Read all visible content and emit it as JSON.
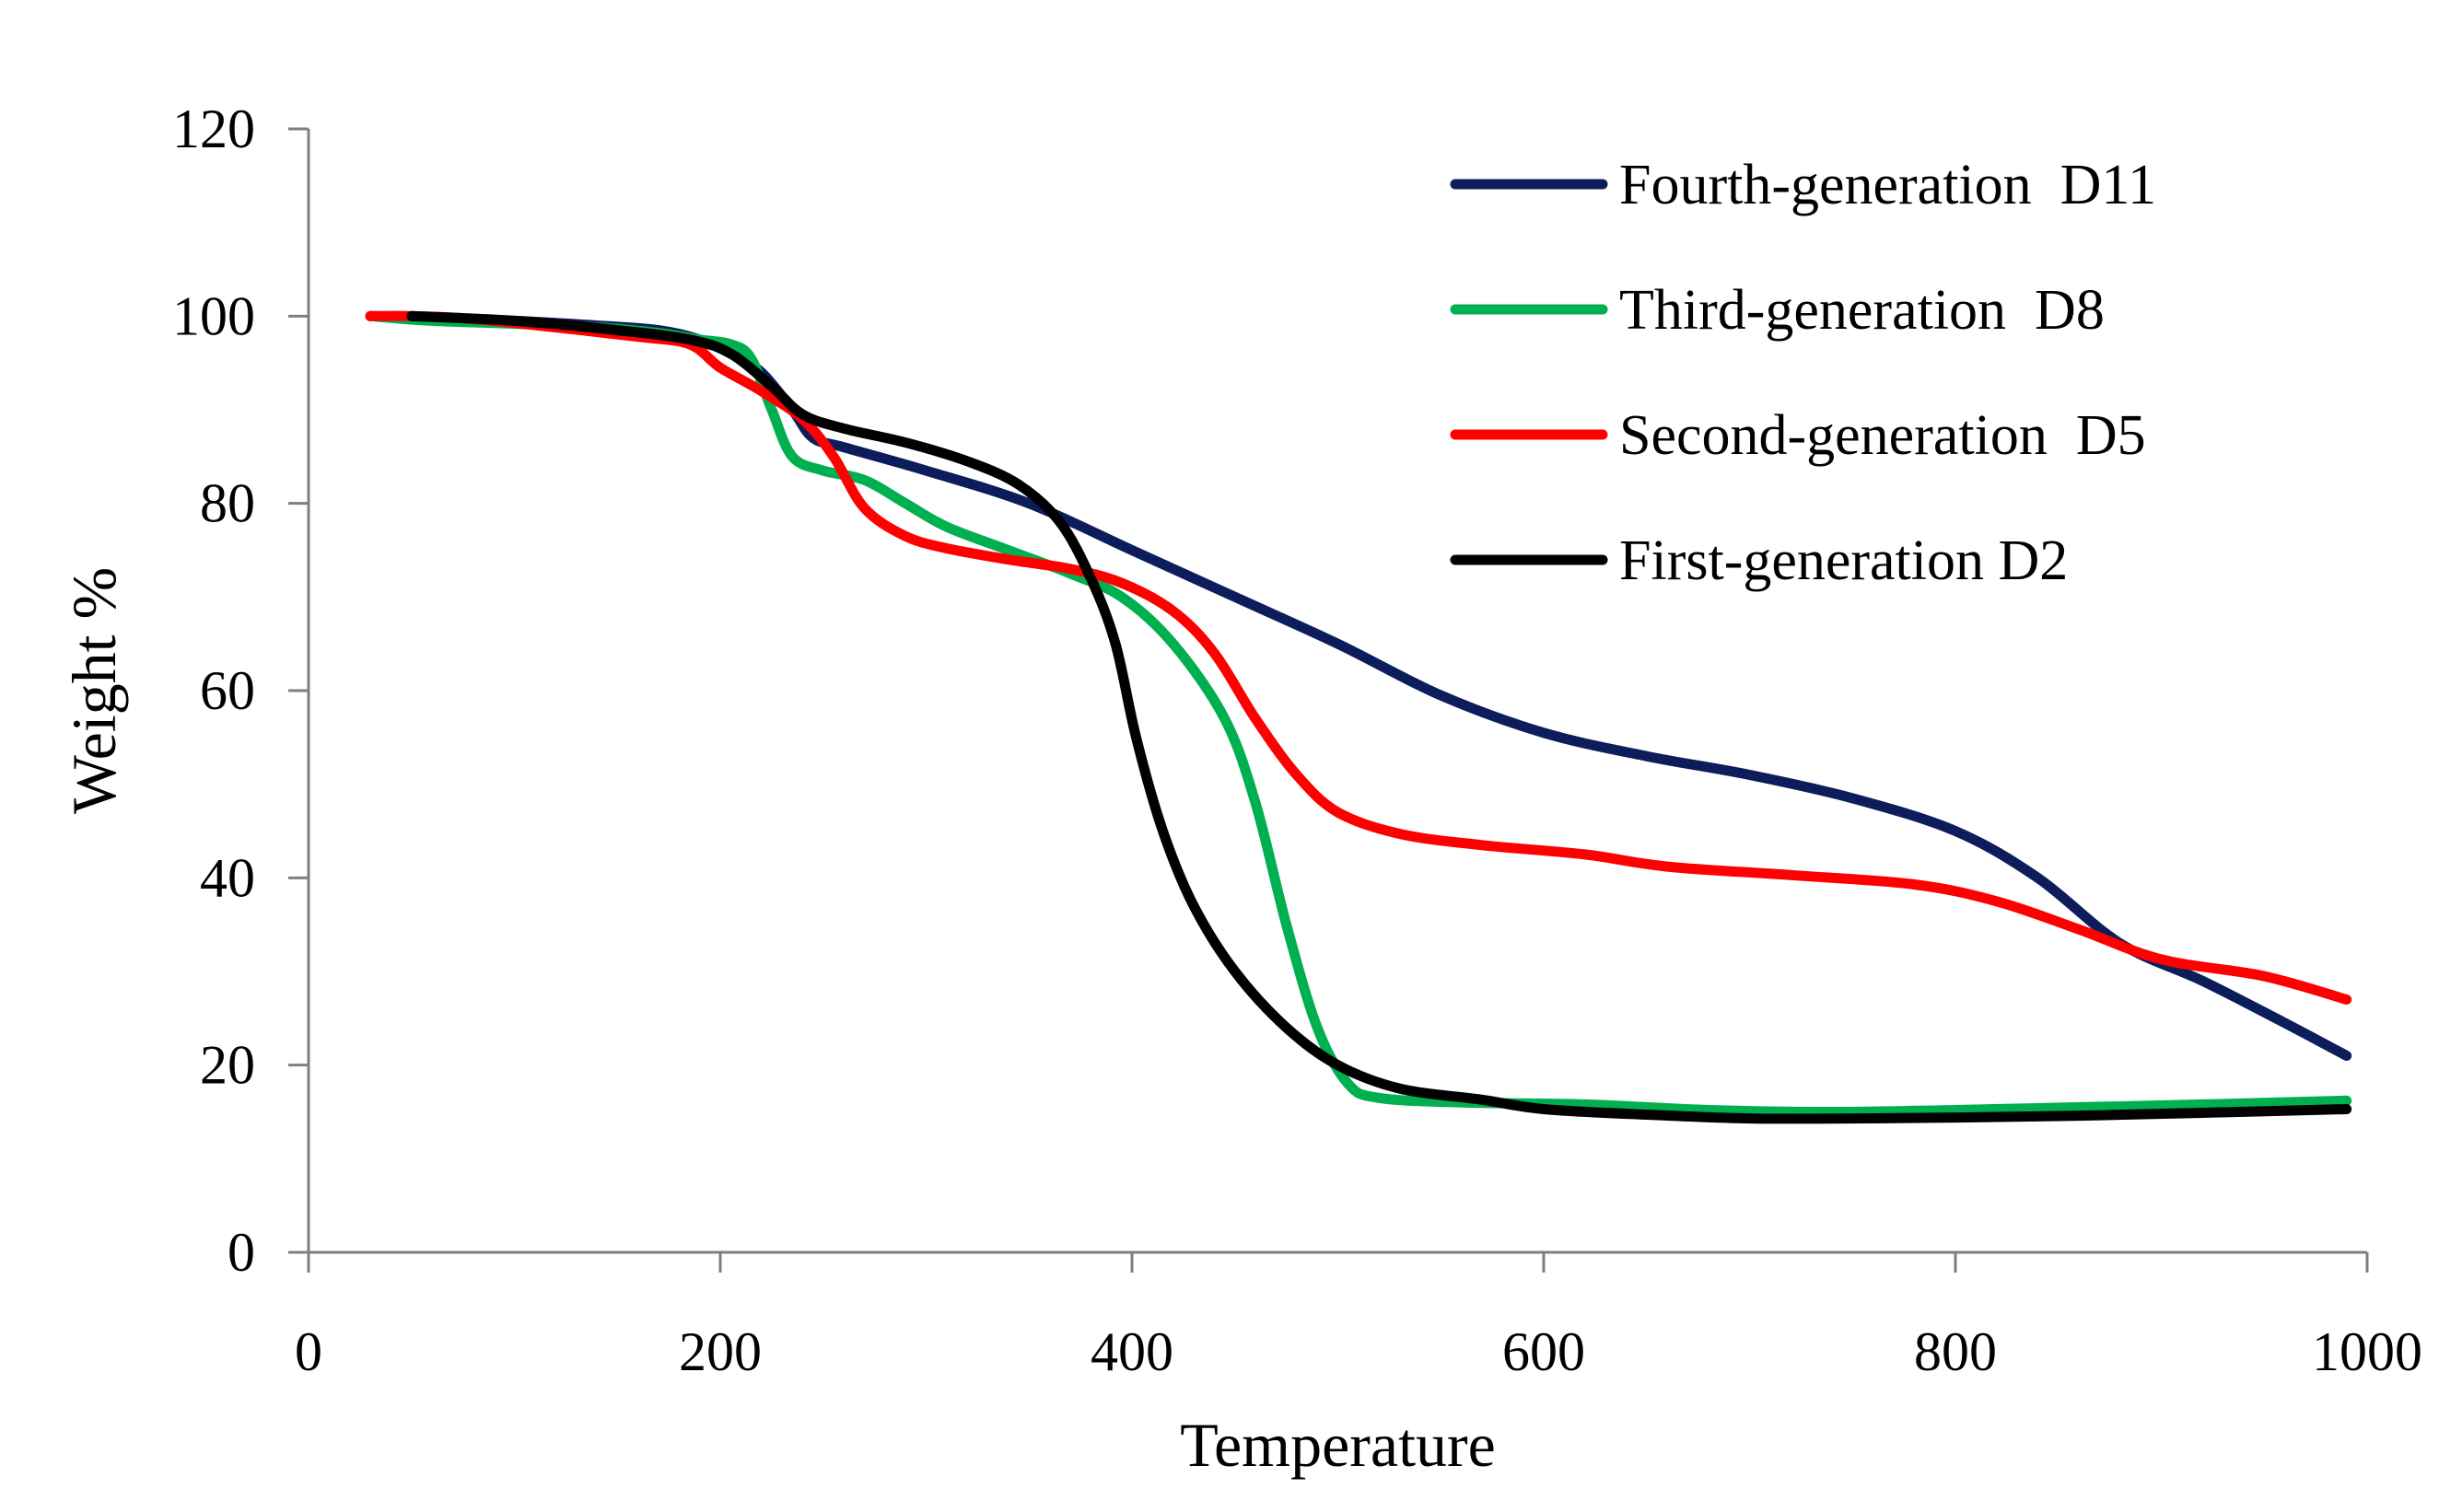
{
  "chart_data": {
    "type": "line",
    "title": "",
    "xlabel": "Temperature",
    "ylabel": "Weight %",
    "xlim": [
      0,
      1000
    ],
    "ylim": [
      0,
      120
    ],
    "xticks": [
      0,
      200,
      400,
      600,
      800,
      1000
    ],
    "yticks": [
      0,
      20,
      40,
      60,
      80,
      100,
      120
    ],
    "grid": false,
    "legend_position": "top-right",
    "series": [
      {
        "name": "Fourth-generation  D11",
        "color": "#0d1d5c",
        "points": [
          [
            30,
            100
          ],
          [
            60,
            99.8
          ],
          [
            100,
            99.5
          ],
          [
            140,
            99
          ],
          [
            170,
            98.5
          ],
          [
            190,
            97.5
          ],
          [
            205,
            96
          ],
          [
            220,
            94
          ],
          [
            235,
            90
          ],
          [
            245,
            87
          ],
          [
            260,
            86
          ],
          [
            300,
            83.5
          ],
          [
            350,
            80
          ],
          [
            400,
            75
          ],
          [
            450,
            70
          ],
          [
            500,
            65
          ],
          [
            550,
            59.5
          ],
          [
            600,
            55.5
          ],
          [
            650,
            53
          ],
          [
            700,
            51
          ],
          [
            750,
            48.5
          ],
          [
            800,
            45
          ],
          [
            840,
            40
          ],
          [
            880,
            33
          ],
          [
            920,
            29
          ],
          [
            960,
            24.5
          ],
          [
            990,
            21
          ]
        ]
      },
      {
        "name": "Third-generation  D8",
        "color": "#00b050",
        "points": [
          [
            30,
            100
          ],
          [
            60,
            99.5
          ],
          [
            100,
            99.2
          ],
          [
            140,
            98.8
          ],
          [
            170,
            98.2
          ],
          [
            190,
            97.5
          ],
          [
            205,
            97
          ],
          [
            215,
            95.5
          ],
          [
            225,
            90
          ],
          [
            235,
            85
          ],
          [
            250,
            83.5
          ],
          [
            270,
            82.5
          ],
          [
            290,
            80
          ],
          [
            310,
            77.5
          ],
          [
            340,
            75
          ],
          [
            370,
            72.5
          ],
          [
            395,
            70
          ],
          [
            420,
            65
          ],
          [
            445,
            57
          ],
          [
            460,
            48
          ],
          [
            475,
            35
          ],
          [
            490,
            24
          ],
          [
            505,
            18
          ],
          [
            520,
            16.5
          ],
          [
            560,
            16
          ],
          [
            620,
            15.8
          ],
          [
            680,
            15.2
          ],
          [
            740,
            15
          ],
          [
            800,
            15.2
          ],
          [
            860,
            15.5
          ],
          [
            920,
            15.8
          ],
          [
            990,
            16.2
          ]
        ]
      },
      {
        "name": "Second-generation  D5",
        "color": "#ff0000",
        "points": [
          [
            30,
            100
          ],
          [
            50,
            100
          ],
          [
            80,
            99.7
          ],
          [
            120,
            98.8
          ],
          [
            160,
            97.8
          ],
          [
            185,
            97
          ],
          [
            200,
            94.5
          ],
          [
            220,
            92
          ],
          [
            240,
            89
          ],
          [
            255,
            85
          ],
          [
            270,
            79.5
          ],
          [
            290,
            76.5
          ],
          [
            310,
            75.2
          ],
          [
            340,
            74
          ],
          [
            370,
            73
          ],
          [
            395,
            71.5
          ],
          [
            420,
            68.5
          ],
          [
            440,
            64
          ],
          [
            460,
            57
          ],
          [
            480,
            51
          ],
          [
            500,
            47
          ],
          [
            530,
            44.7
          ],
          [
            570,
            43.5
          ],
          [
            620,
            42.5
          ],
          [
            660,
            41.2
          ],
          [
            720,
            40.3
          ],
          [
            780,
            39.3
          ],
          [
            820,
            37.5
          ],
          [
            860,
            34.5
          ],
          [
            900,
            31.3
          ],
          [
            950,
            29.5
          ],
          [
            990,
            27
          ]
        ]
      },
      {
        "name": "First-generation D2",
        "color": "#000000",
        "points": [
          [
            50,
            100
          ],
          [
            100,
            99.5
          ],
          [
            150,
            98.5
          ],
          [
            185,
            97.5
          ],
          [
            205,
            96
          ],
          [
            225,
            92.5
          ],
          [
            240,
            89.5
          ],
          [
            260,
            88
          ],
          [
            290,
            86.5
          ],
          [
            320,
            84.5
          ],
          [
            345,
            82
          ],
          [
            365,
            78
          ],
          [
            380,
            72
          ],
          [
            392,
            65
          ],
          [
            402,
            55
          ],
          [
            415,
            45
          ],
          [
            430,
            37
          ],
          [
            450,
            30
          ],
          [
            475,
            24
          ],
          [
            500,
            20
          ],
          [
            530,
            17.5
          ],
          [
            570,
            16.3
          ],
          [
            600,
            15.3
          ],
          [
            650,
            14.7
          ],
          [
            700,
            14.3
          ],
          [
            750,
            14.3
          ],
          [
            800,
            14.4
          ],
          [
            860,
            14.6
          ],
          [
            920,
            14.9
          ],
          [
            990,
            15.3
          ]
        ]
      }
    ]
  }
}
